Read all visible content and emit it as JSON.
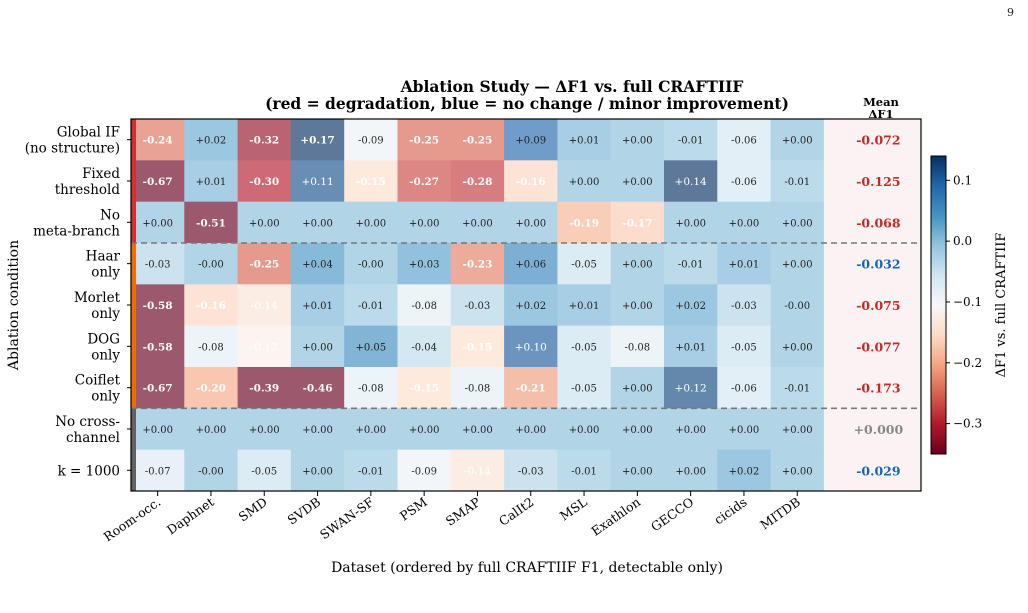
{
  "page_number": "9",
  "chart_data": {
    "type": "heatmap",
    "title": "Ablation Study — ΔF1 vs. full CRAFTIIF",
    "subtitle": "(red = degradation, blue = no change / minor improvement)",
    "xlabel": "Dataset (ordered by full CRAFTIIF F1, detectable only)",
    "ylabel": "Ablation condition",
    "mean_header": "Mean ΔF1",
    "colorbar_label": "ΔF1 vs. full CRAFTIIF",
    "colorbar_range": [
      -0.35,
      0.14
    ],
    "colorbar_ticks": [
      "0.1",
      "0.0",
      "−0.1",
      "−0.2",
      "−0.3"
    ],
    "colorbar_tick_values": [
      0.1,
      0.0,
      -0.1,
      -0.2,
      -0.3
    ],
    "colorscale": "RdBu",
    "columns": [
      "Room-occ.",
      "Daphnet",
      "SMD",
      "SVDB",
      "SWAN-SF",
      "PSM",
      "SMAP",
      "CalIt2",
      "MSL",
      "Exathlon",
      "GECCO",
      "cicids",
      "MITDB"
    ],
    "rows": [
      {
        "label": [
          "Global IF",
          "(no structure)"
        ],
        "group": "structure",
        "values": [
          -0.24,
          0.02,
          -0.32,
          0.17,
          -0.09,
          -0.25,
          -0.25,
          0.09,
          0.01,
          0.0,
          -0.01,
          -0.06,
          0.0
        ],
        "cells": [
          "-0.24",
          "+0.02",
          "-0.32",
          "+0.17",
          "-0.09",
          "-0.25",
          "-0.25",
          "+0.09",
          "+0.01",
          "+0.00",
          "-0.01",
          "-0.06",
          "+0.00"
        ],
        "mean": "-0.072",
        "mean_color": "#c62828"
      },
      {
        "label": [
          "Fixed",
          "threshold"
        ],
        "group": "structure",
        "values": [
          -0.67,
          0.01,
          -0.3,
          0.11,
          -0.15,
          -0.27,
          -0.28,
          -0.16,
          0.0,
          0.0,
          0.14,
          -0.06,
          -0.01
        ],
        "cells": [
          "-0.67",
          "+0.01",
          "-0.30",
          "+0.11",
          "-0.15",
          "-0.27",
          "-0.28",
          "-0.16",
          "+0.00",
          "+0.00",
          "+0.14",
          "-0.06",
          "-0.01"
        ],
        "mean": "-0.125",
        "mean_color": "#c62828"
      },
      {
        "label": [
          "No",
          "meta-branch"
        ],
        "group": "structure",
        "values": [
          0.0,
          -0.51,
          0.0,
          0.0,
          0.0,
          0.0,
          0.0,
          0.0,
          -0.19,
          -0.17,
          0.0,
          0.0,
          0.0
        ],
        "cells": [
          "+0.00",
          "-0.51",
          "+0.00",
          "+0.00",
          "+0.00",
          "+0.00",
          "+0.00",
          "+0.00",
          "-0.19",
          "-0.17",
          "+0.00",
          "+0.00",
          "+0.00"
        ],
        "mean": "-0.068",
        "mean_color": "#c62828"
      },
      {
        "label": [
          "Haar",
          "only"
        ],
        "group": "wavelet",
        "values": [
          -0.03,
          0.0,
          -0.25,
          0.04,
          0.0,
          0.03,
          -0.23,
          0.06,
          -0.05,
          0.0,
          -0.01,
          0.01,
          0.0
        ],
        "cells": [
          "-0.03",
          "-0.00",
          "-0.25",
          "+0.04",
          "-0.00",
          "+0.03",
          "-0.23",
          "+0.06",
          "-0.05",
          "+0.00",
          "-0.01",
          "+0.01",
          "+0.00"
        ],
        "mean": "-0.032",
        "mean_color": "#1565c0"
      },
      {
        "label": [
          "Morlet",
          "only"
        ],
        "group": "wavelet",
        "values": [
          -0.58,
          -0.16,
          -0.14,
          0.01,
          -0.01,
          -0.08,
          -0.03,
          0.02,
          0.01,
          0.0,
          0.02,
          -0.03,
          0.0
        ],
        "cells": [
          "-0.58",
          "-0.16",
          "-0.14",
          "+0.01",
          "-0.01",
          "-0.08",
          "-0.03",
          "+0.02",
          "+0.01",
          "+0.00",
          "+0.02",
          "-0.03",
          "-0.00"
        ],
        "mean": "-0.075",
        "mean_color": "#c62828"
      },
      {
        "label": [
          "DOG",
          "only"
        ],
        "group": "wavelet",
        "values": [
          -0.58,
          -0.08,
          -0.12,
          0.0,
          0.05,
          -0.04,
          -0.15,
          0.1,
          -0.05,
          -0.08,
          0.01,
          -0.05,
          0.0
        ],
        "cells": [
          "-0.58",
          "-0.08",
          "-0.12",
          "+0.00",
          "+0.05",
          "-0.04",
          "-0.15",
          "+0.10",
          "-0.05",
          "-0.08",
          "+0.01",
          "-0.05",
          "+0.00"
        ],
        "mean": "-0.077",
        "mean_color": "#c62828"
      },
      {
        "label": [
          "Coiflet",
          "only"
        ],
        "group": "wavelet",
        "values": [
          -0.67,
          -0.2,
          -0.39,
          -0.46,
          -0.08,
          -0.15,
          -0.08,
          -0.21,
          -0.05,
          0.0,
          0.12,
          -0.06,
          -0.01
        ],
        "cells": [
          "-0.67",
          "-0.20",
          "-0.39",
          "-0.46",
          "-0.08",
          "-0.15",
          "-0.08",
          "-0.21",
          "-0.05",
          "+0.00",
          "+0.12",
          "-0.06",
          "-0.01"
        ],
        "mean": "-0.173",
        "mean_color": "#c62828"
      },
      {
        "label": [
          "No cross-",
          "channel"
        ],
        "group": "other",
        "values": [
          0.0,
          0.0,
          0.0,
          0.0,
          0.0,
          0.0,
          0.0,
          0.0,
          0.0,
          0.0,
          0.0,
          0.0,
          0.0
        ],
        "cells": [
          "+0.00",
          "+0.00",
          "+0.00",
          "+0.00",
          "+0.00",
          "+0.00",
          "+0.00",
          "+0.00",
          "+0.00",
          "+0.00",
          "+0.00",
          "+0.00",
          "+0.00"
        ],
        "mean": "+0.000",
        "mean_color": "#888888"
      },
      {
        "label": [
          "k = 1000"
        ],
        "group": "other",
        "values": [
          -0.07,
          0.0,
          -0.05,
          0.0,
          -0.01,
          -0.09,
          -0.14,
          -0.03,
          -0.01,
          0.0,
          0.0,
          0.02,
          0.0
        ],
        "cells": [
          "-0.07",
          "-0.00",
          "-0.05",
          "+0.00",
          "-0.01",
          "-0.09",
          "-0.14",
          "-0.03",
          "-0.01",
          "+0.00",
          "+0.00",
          "+0.02",
          "+0.00"
        ],
        "mean": "-0.029",
        "mean_color": "#1565c0"
      }
    ],
    "group_colors": {
      "structure": "#d32f2f",
      "wavelet": "#ef6c00",
      "other": "#616161"
    }
  }
}
